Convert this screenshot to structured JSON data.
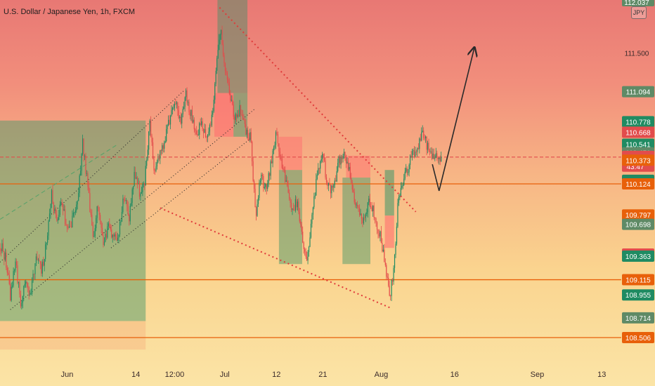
{
  "title": "U.S. Dollar / Japanese Yen, 1h, FXCM",
  "currency_badge": "JPY",
  "chart_data": {
    "type": "candlestick",
    "title": "U.S. Dollar / Japanese Yen, 1h, FXCM",
    "ylim": [
      108.38,
      112.1
    ],
    "x_ticks": [
      {
        "label": "Jun",
        "d": 13
      },
      {
        "label": "14",
        "d": 26.3
      },
      {
        "label": "12:00",
        "d": 33.8
      },
      {
        "label": "Jul",
        "d": 43.5
      },
      {
        "label": "12",
        "d": 53.5
      },
      {
        "label": "21",
        "d": 62.5
      },
      {
        "label": "Aug",
        "d": 73.8
      },
      {
        "label": "16",
        "d": 88
      },
      {
        "label": "Sep",
        "d": 104
      },
      {
        "label": "13",
        "d": 116.5
      }
    ],
    "price_labels": [
      {
        "value": "112.037",
        "kind": "axis-top"
      },
      {
        "value": "111.500",
        "kind": "axis"
      },
      {
        "value": "111.094",
        "kind": "badge",
        "color": "#5f8a66"
      },
      {
        "value": "110.778",
        "kind": "badge",
        "color": "#1f8b62"
      },
      {
        "value": "110.668",
        "kind": "badge",
        "color": "#e24c4c"
      },
      {
        "value": "110.541",
        "kind": "badge",
        "color": "#1f8b62"
      },
      {
        "value": "110.451",
        "kind": "badge",
        "color": "#5f8a66"
      },
      {
        "value": "110.406",
        "kind": "current",
        "color": "#e24c4c",
        "countdown": "43:47"
      },
      {
        "value": "110.373",
        "kind": "badge",
        "color": "#e8600a"
      },
      {
        "value": "110.162",
        "kind": "badge",
        "color": "#1f8b62"
      },
      {
        "value": "110.124",
        "kind": "badge",
        "color": "#e8600a"
      },
      {
        "value": "109.797",
        "kind": "badge",
        "color": "#e8600a"
      },
      {
        "value": "109.698",
        "kind": "badge",
        "color": "#5f8a66"
      },
      {
        "value": "109.385",
        "kind": "badge",
        "color": "#e24c4c"
      },
      {
        "value": "109.363",
        "kind": "badge",
        "color": "#1f8b62"
      },
      {
        "value": "109.115",
        "kind": "badge",
        "color": "#e8600a"
      },
      {
        "value": "108.955",
        "kind": "badge",
        "color": "#1f8b62"
      },
      {
        "value": "108.714",
        "kind": "badge",
        "color": "#5f8a66"
      },
      {
        "value": "108.506",
        "kind": "badge",
        "color": "#e8600a"
      }
    ],
    "horizontal_levels": [
      {
        "y": 110.124,
        "color": "#e8600a",
        "style": "solid"
      },
      {
        "y": 109.115,
        "color": "#e8600a",
        "style": "solid"
      },
      {
        "y": 108.506,
        "color": "#e8600a",
        "style": "solid"
      },
      {
        "y": 110.406,
        "color": "#e24c4c",
        "style": "dashed"
      }
    ],
    "zones": [
      {
        "d1": 0,
        "d2": 28.2,
        "y1": 110.79,
        "y2": 108.68,
        "color": "#4e9a6a",
        "opacity": 0.5
      },
      {
        "d1": 0,
        "d2": 28.2,
        "y1": 108.68,
        "y2": 108.38,
        "color": "#f4a070",
        "opacity": 0.3
      },
      {
        "d1": 42.1,
        "d2": 47.9,
        "y1": 112.1,
        "y2": 111.08,
        "color": "#6a8a6a",
        "opacity": 0.6
      },
      {
        "d1": 41.5,
        "d2": 45.2,
        "y1": 111.08,
        "y2": 110.62,
        "color": "#ff6f6f",
        "opacity": 0.6
      },
      {
        "d1": 45.2,
        "d2": 47.9,
        "y1": 111.08,
        "y2": 110.62,
        "color": "#5fa070",
        "opacity": 0.6
      },
      {
        "d1": 54.0,
        "d2": 58.5,
        "y1": 110.62,
        "y2": 110.27,
        "color": "#ff6f6f",
        "opacity": 0.5
      },
      {
        "d1": 54.0,
        "d2": 58.5,
        "y1": 110.27,
        "y2": 109.28,
        "color": "#4e9a6a",
        "opacity": 0.5
      },
      {
        "d1": 67.0,
        "d2": 71.7,
        "y1": 110.42,
        "y2": 110.19,
        "color": "#ff6f6f",
        "opacity": 0.5
      },
      {
        "d1": 66.3,
        "d2": 71.7,
        "y1": 110.19,
        "y2": 109.28,
        "color": "#4e9a6a",
        "opacity": 0.5
      },
      {
        "d1": 74.5,
        "d2": 76.3,
        "y1": 110.27,
        "y2": 109.79,
        "color": "#4e9a6a",
        "opacity": 0.6
      },
      {
        "d1": 74.5,
        "d2": 76.3,
        "y1": 109.79,
        "y2": 109.45,
        "color": "#ff6f6f",
        "opacity": 0.6
      }
    ],
    "trend_lines": [
      {
        "d1": 0,
        "y1": 109.3,
        "d2": 35.5,
        "y2": 111.1,
        "style": "dotted",
        "color": "#2a2a2a"
      },
      {
        "d1": 0,
        "y1": 109.75,
        "d2": 22.5,
        "y2": 110.53,
        "style": "dashed",
        "color": "#5aa26a"
      },
      {
        "d1": 2,
        "y1": 108.8,
        "d2": 49.5,
        "y2": 110.92,
        "style": "dotted",
        "color": "#2a2a2a"
      },
      {
        "d1": 21.5,
        "y1": 109.45,
        "d2": 48.5,
        "y2": 110.6,
        "style": "dotted",
        "color": "#2a2a2a"
      },
      {
        "d1": 42.5,
        "y1": 111.98,
        "d2": 80.5,
        "y2": 109.83,
        "style": "dotted",
        "color": "#e03a3a"
      },
      {
        "d1": 31.0,
        "y1": 109.87,
        "d2": 75.5,
        "y2": 108.82,
        "style": "dotted",
        "color": "#e03a3a"
      }
    ],
    "arrow_path": [
      {
        "d": 83.7,
        "y": 110.33
      },
      {
        "d": 85.0,
        "y": 110.05
      },
      {
        "d": 91.8,
        "y": 111.55
      }
    ],
    "price_path": [
      [
        0,
        109.5
      ],
      [
        1,
        109.35
      ],
      [
        2,
        108.95
      ],
      [
        3,
        109.3
      ],
      [
        4,
        108.85
      ],
      [
        5,
        109.1
      ],
      [
        6,
        108.95
      ],
      [
        7,
        109.4
      ],
      [
        8,
        109.2
      ],
      [
        9,
        109.5
      ],
      [
        10,
        110.0
      ],
      [
        11,
        109.7
      ],
      [
        12,
        109.95
      ],
      [
        13,
        109.6
      ],
      [
        14,
        109.75
      ],
      [
        15,
        109.95
      ],
      [
        16,
        110.55
      ],
      [
        17,
        110.1
      ],
      [
        18,
        109.55
      ],
      [
        19,
        109.9
      ],
      [
        20,
        109.45
      ],
      [
        21,
        109.7
      ],
      [
        22,
        109.55
      ],
      [
        23,
        109.6
      ],
      [
        24,
        110.0
      ],
      [
        25,
        109.75
      ],
      [
        26,
        110.25
      ],
      [
        27,
        110.05
      ],
      [
        28,
        110.15
      ],
      [
        29,
        110.8
      ],
      [
        30,
        110.2
      ],
      [
        31,
        110.45
      ],
      [
        32,
        110.6
      ],
      [
        33,
        110.85
      ],
      [
        34,
        111.0
      ],
      [
        35,
        110.75
      ],
      [
        36,
        111.05
      ],
      [
        37,
        110.85
      ],
      [
        38,
        110.65
      ],
      [
        39,
        110.75
      ],
      [
        40,
        110.6
      ],
      [
        41,
        110.8
      ],
      [
        42,
        111.45
      ],
      [
        42.7,
        111.8
      ],
      [
        43.5,
        111.35
      ],
      [
        44.5,
        111.05
      ],
      [
        45.3,
        110.85
      ],
      [
        46.5,
        110.9
      ],
      [
        47.5,
        110.7
      ],
      [
        48.5,
        110.6
      ],
      [
        49.5,
        109.8
      ],
      [
        50.5,
        110.2
      ],
      [
        51.5,
        110.05
      ],
      [
        52.5,
        110.35
      ],
      [
        53.5,
        110.65
      ],
      [
        54.5,
        110.3
      ],
      [
        55.5,
        110.15
      ],
      [
        56.5,
        109.8
      ],
      [
        57.5,
        109.95
      ],
      [
        58.5,
        109.55
      ],
      [
        59.5,
        109.35
      ],
      [
        60.5,
        109.85
      ],
      [
        61.5,
        110.25
      ],
      [
        62.5,
        110.4
      ],
      [
        63.5,
        110.1
      ],
      [
        64.5,
        110.05
      ],
      [
        65.5,
        110.35
      ],
      [
        66.5,
        110.45
      ],
      [
        67.5,
        110.3
      ],
      [
        68.5,
        110.0
      ],
      [
        69.5,
        109.85
      ],
      [
        70.5,
        109.7
      ],
      [
        71.5,
        109.95
      ],
      [
        72.5,
        109.8
      ],
      [
        73.5,
        109.6
      ],
      [
        74.5,
        109.3
      ],
      [
        75.5,
        108.95
      ],
      [
        76.3,
        109.25
      ],
      [
        77.0,
        109.9
      ],
      [
        78.0,
        110.15
      ],
      [
        79.0,
        110.3
      ],
      [
        80.0,
        110.45
      ],
      [
        81.0,
        110.5
      ],
      [
        81.8,
        110.7
      ],
      [
        82.5,
        110.55
      ],
      [
        83.5,
        110.45
      ],
      [
        84.5,
        110.42
      ],
      [
        85.5,
        110.41
      ]
    ]
  }
}
